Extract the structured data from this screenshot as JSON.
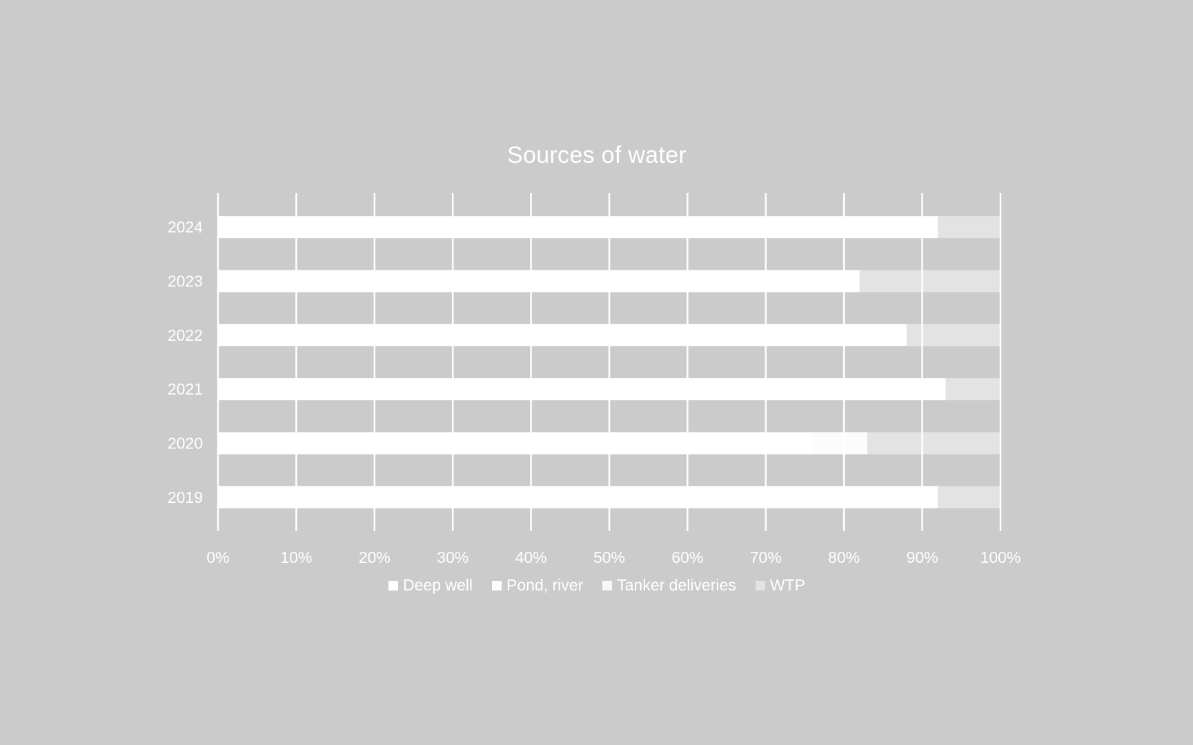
{
  "chart_data": {
    "type": "bar",
    "orientation": "horizontal",
    "stacked": "percent",
    "title": "Sources of water",
    "categories": [
      "2024",
      "2023",
      "2022",
      "2021",
      "2020",
      "2019"
    ],
    "series": [
      {
        "name": "Deep well",
        "color": "#ffffff",
        "values": [
          92,
          82,
          88,
          93,
          76,
          92
        ]
      },
      {
        "name": "Pond, river",
        "color": "#fcfcfc",
        "values": [
          0,
          0,
          0,
          0,
          7,
          0
        ]
      },
      {
        "name": "Tanker deliveries",
        "color": "#f7f7f7",
        "values": [
          0,
          0,
          0,
          0,
          0,
          0
        ]
      },
      {
        "name": "WTP",
        "color": "#e3e3e3",
        "values": [
          8,
          18,
          12,
          7,
          17,
          8
        ]
      }
    ],
    "x_ticks": [
      "0%",
      "10%",
      "20%",
      "30%",
      "40%",
      "50%",
      "60%",
      "70%",
      "80%",
      "90%",
      "100%"
    ],
    "xlim": [
      0,
      100
    ],
    "grid": "vertical",
    "legend": "bottom",
    "colors": {
      "background": "#cccccc",
      "grid": "#ffffff",
      "text": "#ffffff"
    }
  }
}
